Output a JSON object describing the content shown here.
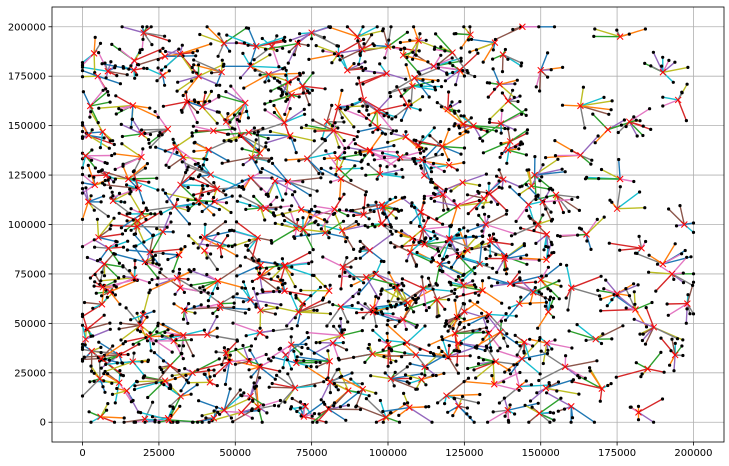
{
  "chart_data": {
    "type": "scatter",
    "title": "",
    "xlabel": "",
    "ylabel": "",
    "xlim": [
      -10000,
      210000
    ],
    "ylim": [
      -10000,
      210000
    ],
    "grid": true,
    "legend": "none",
    "x_ticks": [
      0,
      25000,
      50000,
      75000,
      100000,
      125000,
      150000,
      175000,
      200000
    ],
    "x_tick_labels": [
      "0",
      "25000",
      "50000",
      "75000",
      "100000",
      "125000",
      "150000",
      "175000",
      "200000"
    ],
    "y_ticks": [
      0,
      25000,
      50000,
      75000,
      100000,
      125000,
      150000,
      175000,
      200000
    ],
    "y_tick_labels": [
      "0",
      "25000",
      "50000",
      "75000",
      "100000",
      "125000",
      "150000",
      "175000",
      "200000"
    ],
    "series": [
      {
        "kind": "points",
        "marker": "dot",
        "color": "#000000",
        "description_of_shape": "black dots spread uniformly over [0, 200000] x [0, 200000]",
        "count_approx": 2200
      },
      {
        "kind": "star_edges",
        "colors": [
          "#1f77b4",
          "#ff7f0e",
          "#2ca02c",
          "#d62728",
          "#9467bd",
          "#8c564b",
          "#e377c2",
          "#7f7f7f",
          "#bcbd22",
          "#17becf"
        ],
        "description_of_shape": "each red-cross center is joined by straight colored segments to its nearby black dots"
      },
      {
        "kind": "centers",
        "marker": "x",
        "color": "#ff0000",
        "count_approx": 300,
        "centers": [
          [
            4000,
            120000
          ],
          [
            8500,
            88000
          ],
          [
            2000,
            145000
          ],
          [
            15000,
            123000
          ],
          [
            20000,
            197000
          ],
          [
            27000,
            185000
          ],
          [
            33000,
            134000
          ],
          [
            47000,
            152000
          ],
          [
            52000,
            145000
          ],
          [
            58000,
            136000
          ],
          [
            55000,
            180000
          ],
          [
            62000,
            190000
          ],
          [
            75000,
            197000
          ],
          [
            90000,
            195000
          ],
          [
            100000,
            190000
          ],
          [
            110000,
            193000
          ],
          [
            127000,
            196000
          ],
          [
            144000,
            200000
          ],
          [
            135000,
            192000
          ],
          [
            150000,
            178000
          ],
          [
            176000,
            195000
          ],
          [
            190000,
            177000
          ],
          [
            195000,
            163000
          ],
          [
            179000,
            152000
          ],
          [
            172000,
            148000
          ],
          [
            108000,
            170000
          ],
          [
            115000,
            180000
          ],
          [
            104000,
            134000
          ],
          [
            84000,
            128000
          ],
          [
            118000,
            115000
          ],
          [
            98000,
            110000
          ],
          [
            92000,
            105000
          ],
          [
            70000,
            98000
          ],
          [
            85000,
            97000
          ],
          [
            108000,
            93000
          ],
          [
            112000,
            90000
          ],
          [
            120000,
            93000
          ],
          [
            126000,
            87000
          ],
          [
            130000,
            80000
          ],
          [
            138000,
            84000
          ],
          [
            117000,
            80000
          ],
          [
            140000,
            70000
          ],
          [
            150000,
            72000
          ],
          [
            160000,
            68000
          ],
          [
            175000,
            65000
          ],
          [
            190000,
            80000
          ],
          [
            193000,
            75000
          ],
          [
            198000,
            60000
          ],
          [
            181000,
            57000
          ],
          [
            187000,
            48000
          ],
          [
            194000,
            34000
          ],
          [
            185000,
            27000
          ],
          [
            170000,
            17000
          ],
          [
            182000,
            5000
          ],
          [
            160000,
            8000
          ],
          [
            143000,
            18000
          ],
          [
            133000,
            45000
          ],
          [
            123000,
            40000
          ],
          [
            112000,
            28000
          ],
          [
            101000,
            22000
          ],
          [
            87000,
            16000
          ],
          [
            73000,
            8000
          ],
          [
            58000,
            28000
          ],
          [
            52000,
            5000
          ],
          [
            43000,
            2000
          ],
          [
            28000,
            2000
          ],
          [
            27000,
            21000
          ],
          [
            19000,
            49000
          ],
          [
            22000,
            86000
          ],
          [
            18000,
            102000
          ],
          [
            38000,
            112000
          ],
          [
            60000,
            108000
          ],
          [
            63000,
            122000
          ],
          [
            44000,
            118000
          ],
          [
            9000,
            66000
          ],
          [
            1000,
            42000
          ],
          [
            3000,
            36000
          ],
          [
            12000,
            34000
          ],
          [
            33000,
            44000
          ],
          [
            45000,
            58000
          ],
          [
            55000,
            62000
          ],
          [
            72000,
            60000
          ],
          [
            96000,
            75000
          ],
          [
            103000,
            68000
          ],
          [
            105000,
            52000
          ],
          [
            95000,
            58000
          ],
          [
            143000,
            60000
          ],
          [
            152000,
            40000
          ],
          [
            158000,
            28000
          ],
          [
            168000,
            42000
          ],
          [
            175000,
            108000
          ],
          [
            155000,
            115000
          ],
          [
            163000,
            135000
          ],
          [
            133000,
            116000
          ],
          [
            176000,
            123000
          ],
          [
            80000,
            152000
          ],
          [
            92000,
            163000
          ],
          [
            72000,
            170000
          ],
          [
            38000,
            175000
          ],
          [
            5000,
            175000
          ],
          [
            128000,
            150000
          ],
          [
            163000,
            160000
          ],
          [
            140000,
            142000
          ],
          [
            94000,
            137000
          ],
          [
            68000,
            145000
          ],
          [
            146000,
            110000
          ],
          [
            45000,
            89000
          ],
          [
            66000,
            79000
          ],
          [
            32000,
            68000
          ],
          [
            10000,
            112000
          ],
          [
            116000,
            62000
          ],
          [
            125000,
            56000
          ],
          [
            82000,
            40000
          ],
          [
            70000,
            30000
          ],
          [
            47000,
            35000
          ],
          [
            36000,
            25000
          ],
          [
            12000,
            20000
          ],
          [
            165000,
            95000
          ],
          [
            183000,
            88000
          ],
          [
            197000,
            100000
          ],
          [
            152000,
            95000
          ],
          [
            132000,
            100000
          ],
          [
            148000,
            125000
          ],
          [
            120000,
            130000
          ],
          [
            110000,
            140000
          ]
        ]
      }
    ]
  }
}
